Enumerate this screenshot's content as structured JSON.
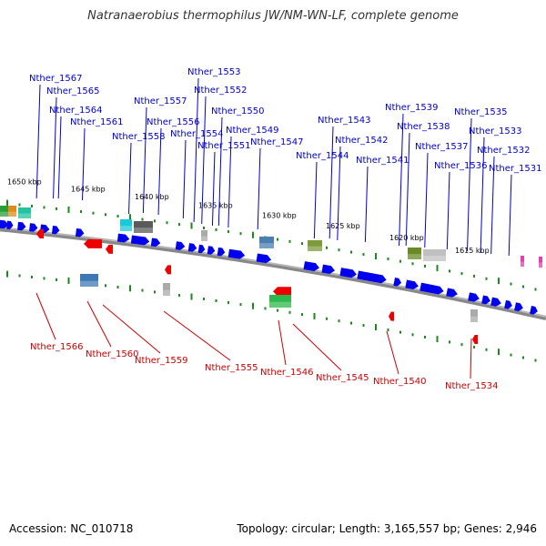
{
  "title": "Natranaerobius thermophilus JW/NM-WN-LF, complete genome",
  "footer": {
    "accession": "Accession: NC_010718",
    "summary": "Topology: circular; Length: 3,165,557 bp; Genes: 2,946"
  },
  "scale_ticks": [
    "1650 kbp",
    "1645 kbp",
    "1640 kbp",
    "1635 kbp",
    "1630 kbp",
    "1625 kbp",
    "1620 kbp",
    "1615 kbp"
  ],
  "forward_genes": [
    "Nther_1567",
    "Nther_1565",
    "Nther_1564",
    "Nther_1561",
    "Nther_1557",
    "Nther_1558",
    "Nther_1556",
    "Nther_1554",
    "Nther_1553",
    "Nther_1552",
    "Nther_1551",
    "Nther_1550",
    "Nther_1549",
    "Nther_1547",
    "Nther_1543",
    "Nther_1544",
    "Nther_1542",
    "Nther_1541",
    "Nther_1539",
    "Nther_1538",
    "Nther_1537",
    "Nther_1536",
    "Nther_1535",
    "Nther_1533",
    "Nther_1532",
    "Nther_1531"
  ],
  "reverse_genes": [
    "Nther_1566",
    "Nther_1560",
    "Nther_1559",
    "Nther_1555",
    "Nther_1546",
    "Nther_1545",
    "Nther_1540",
    "Nther_1534"
  ],
  "colors": {
    "forward_label": "#0000cc",
    "reverse_label": "#cc0000",
    "forward_arrow": "#0000ee",
    "reverse_arrow": "#ee0000",
    "backbone": "#888888",
    "tick": "#1a8a1a"
  }
}
